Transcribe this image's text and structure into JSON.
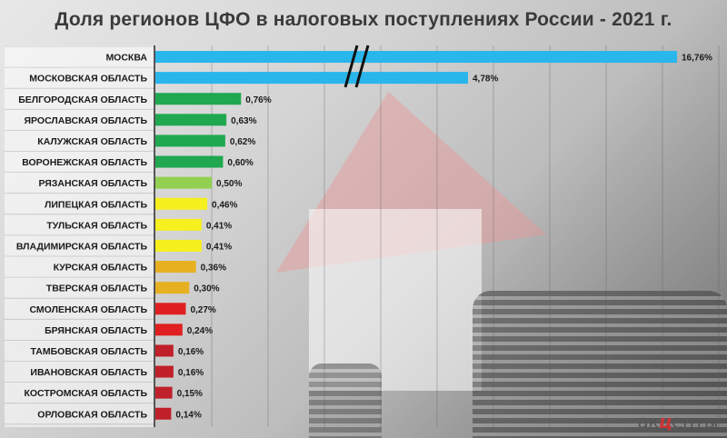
{
  "chart_data": {
    "type": "bar",
    "orientation": "horizontal",
    "title": "Доля регионов ЦФО в налоговых поступлениях России - 2021 г.",
    "xlabel": "",
    "ylabel": "",
    "grid": true,
    "axis_break": true,
    "categories": [
      "МОСКВА",
      "МОСКОВСКАЯ ОБЛАСТЬ",
      "БЕЛГОРОДСКАЯ ОБЛАСТЬ",
      "ЯРОСЛАВСКАЯ ОБЛАСТЬ",
      "КАЛУЖСКАЯ ОБЛАСТЬ",
      "ВОРОНЕЖСКАЯ ОБЛАСТЬ",
      "РЯЗАНСКАЯ ОБЛАСТЬ",
      "ЛИПЕЦКАЯ ОБЛАСТЬ",
      "ТУЛЬСКАЯ ОБЛАСТЬ",
      "ВЛАДИМИРСКАЯ ОБЛАСТЬ",
      "КУРСКАЯ ОБЛАСТЬ",
      "ТВЕРСКАЯ ОБЛАСТЬ",
      "СМОЛЕНСКАЯ ОБЛАСТЬ",
      "БРЯНСКАЯ ОБЛАСТЬ",
      "ТАМБОВСКАЯ ОБЛАСТЬ",
      "ИВАНОВСКАЯ ОБЛАСТЬ",
      "КОСТРОМСКАЯ ОБЛАСТЬ",
      "ОРЛОВСКАЯ ОБЛАСТЬ"
    ],
    "values": [
      16.76,
      4.78,
      0.76,
      0.63,
      0.62,
      0.6,
      0.5,
      0.46,
      0.41,
      0.41,
      0.36,
      0.3,
      0.27,
      0.24,
      0.16,
      0.16,
      0.15,
      0.14
    ],
    "value_labels": [
      "16,76%",
      "4,78%",
      "0,76%",
      "0,63%",
      "0,62%",
      "0,60%",
      "0,50%",
      "0,46%",
      "0,41%",
      "0,41%",
      "0,36%",
      "0,30%",
      "0,27%",
      "0,24%",
      "0,16%",
      "0,16%",
      "0,15%",
      "0,14%"
    ],
    "colors": [
      "#29b6ea",
      "#29b6ea",
      "#1fa84f",
      "#1fa84f",
      "#1fa84f",
      "#1fa84f",
      "#92d050",
      "#f5f01e",
      "#f5f01e",
      "#f5f01e",
      "#e6b020",
      "#e6b020",
      "#e02020",
      "#e02020",
      "#c0202a",
      "#c0202a",
      "#c0202a",
      "#c0202a"
    ]
  },
  "brand": {
    "left": "ак",
    "mid": "ц",
    "right": "енты"
  }
}
